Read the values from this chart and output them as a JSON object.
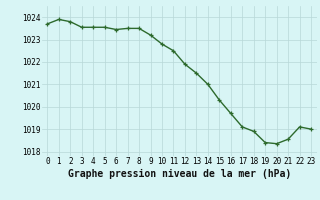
{
  "x": [
    0,
    1,
    2,
    3,
    4,
    5,
    6,
    7,
    8,
    9,
    10,
    11,
    12,
    13,
    14,
    15,
    16,
    17,
    18,
    19,
    20,
    21,
    22,
    23
  ],
  "y": [
    1023.7,
    1023.9,
    1023.8,
    1023.55,
    1023.55,
    1023.55,
    1023.45,
    1023.5,
    1023.5,
    1023.2,
    1022.8,
    1022.5,
    1021.9,
    1021.5,
    1021.0,
    1020.3,
    1019.7,
    1019.1,
    1018.9,
    1018.4,
    1018.35,
    1018.55,
    1019.1,
    1019.0
  ],
  "line_color": "#2d6a2d",
  "marker_color": "#2d6a2d",
  "bg_color": "#d8f5f5",
  "grid_color": "#b8d8d8",
  "xlabel": "Graphe pression niveau de la mer (hPa)",
  "xlabel_fontsize": 7.0,
  "ylim": [
    1017.8,
    1024.5
  ],
  "yticks": [
    1018,
    1019,
    1020,
    1021,
    1022,
    1023,
    1024
  ],
  "xticks": [
    0,
    1,
    2,
    3,
    4,
    5,
    6,
    7,
    8,
    9,
    10,
    11,
    12,
    13,
    14,
    15,
    16,
    17,
    18,
    19,
    20,
    21,
    22,
    23
  ],
  "tick_fontsize": 5.5,
  "line_width": 1.0,
  "marker_size": 3.5
}
